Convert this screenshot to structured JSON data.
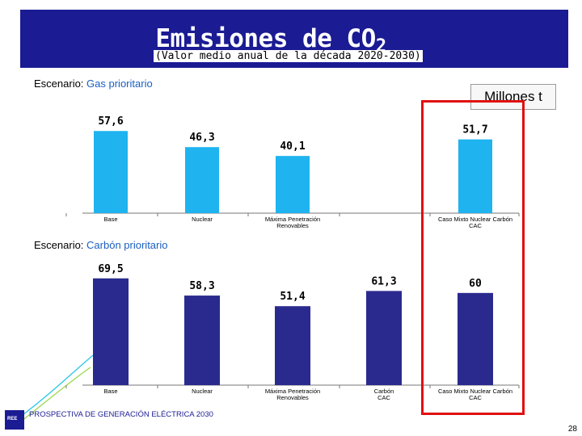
{
  "title": {
    "main": "Emisiones de CO",
    "main_sub": "2",
    "subtitle": "(Valor medio anual de la década 2020-2030)"
  },
  "units": "Millones t",
  "footer": "PROSPECTIVA DE GENERACIÓN ELÉCTRICA 2030",
  "page_number": "28",
  "colors": {
    "title_band": "#1b1b94",
    "gas_bars": "#1fb3f0",
    "coal_bars": "#2a2a8e",
    "highlight_box": "#e01010"
  },
  "chart_data": [
    {
      "type": "bar",
      "scenario_prefix": "Escenario: ",
      "scenario_name": "Gas prioritario",
      "categories": [
        "Base",
        "Nuclear",
        "Máxima Penetración Renovables",
        "Caso Mixto Nuclear Carbón CAC"
      ],
      "values": [
        57.6,
        46.3,
        40.1,
        51.7
      ],
      "labels": [
        "57,6",
        "46,3",
        "40,1",
        "51,7"
      ],
      "ylim": [
        0,
        60
      ],
      "grid": false
    },
    {
      "type": "bar",
      "scenario_prefix": "Escenario: ",
      "scenario_name": "Carbón prioritario",
      "categories": [
        "Base",
        "Nuclear",
        "Máxima Penetración Renovables",
        "Carbón CAC",
        "Caso Mixto Nuclear Carbón CAC"
      ],
      "values": [
        69.5,
        58.3,
        51.4,
        61.3,
        60
      ],
      "labels": [
        "69,5",
        "58,3",
        "51,4",
        "61,3",
        "60"
      ],
      "ylim": [
        0,
        72
      ],
      "grid": false
    }
  ]
}
